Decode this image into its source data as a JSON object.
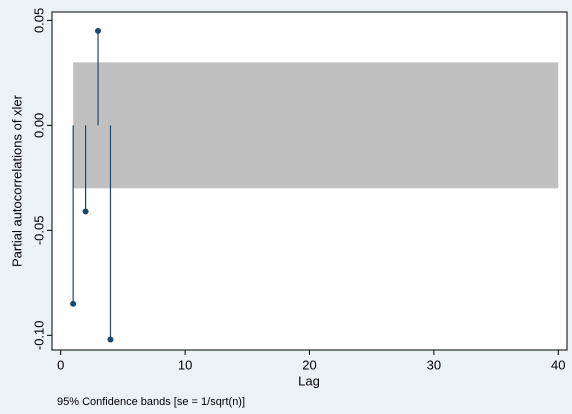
{
  "chart_data": {
    "type": "pacf",
    "y_label": "Partial autocorrelations of xler",
    "x_label": "Lag",
    "note": "95% Confidence bands [se = 1/sqrt(n)]",
    "x": [
      1,
      2,
      3,
      4
    ],
    "values": [
      -0.085,
      -0.041,
      0.045,
      -0.102
    ],
    "color": "#1a476f",
    "band": {
      "lower": -0.03,
      "upper": 0.03,
      "lags": [
        1,
        40
      ],
      "color": "#c0c0c0"
    },
    "xlim": [
      -0.7,
      40.7
    ],
    "xticks": [
      0,
      10,
      20,
      30,
      40
    ],
    "ylim": [
      -0.107,
      0.054
    ],
    "yticks": [
      {
        "value": -0.1,
        "label": "-0.10"
      },
      {
        "value": -0.05,
        "label": "-0.05"
      },
      {
        "value": 0,
        "label": "0.00"
      },
      {
        "value": 0.05,
        "label": "0.05"
      }
    ],
    "grid": false
  }
}
